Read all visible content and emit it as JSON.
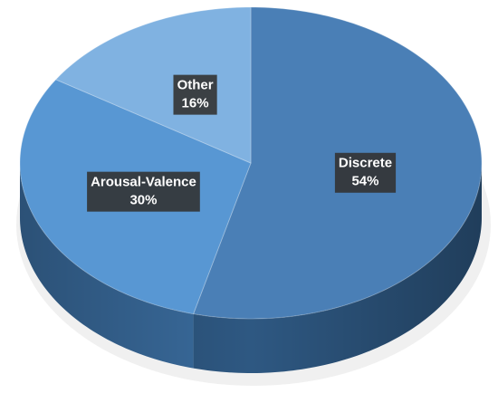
{
  "chart_data": {
    "type": "pie",
    "categories": [
      "Discrete",
      "Arousal-Valence",
      "Other"
    ],
    "values": [
      54,
      30,
      16
    ],
    "value_labels": [
      "54%",
      "30%",
      "16%"
    ],
    "colors": [
      "#4a7fb6",
      "#5897d3",
      "#80b2e1"
    ],
    "side_colors": [
      "#2e5882",
      "#3a6c9e",
      "#5a8dbd"
    ]
  }
}
